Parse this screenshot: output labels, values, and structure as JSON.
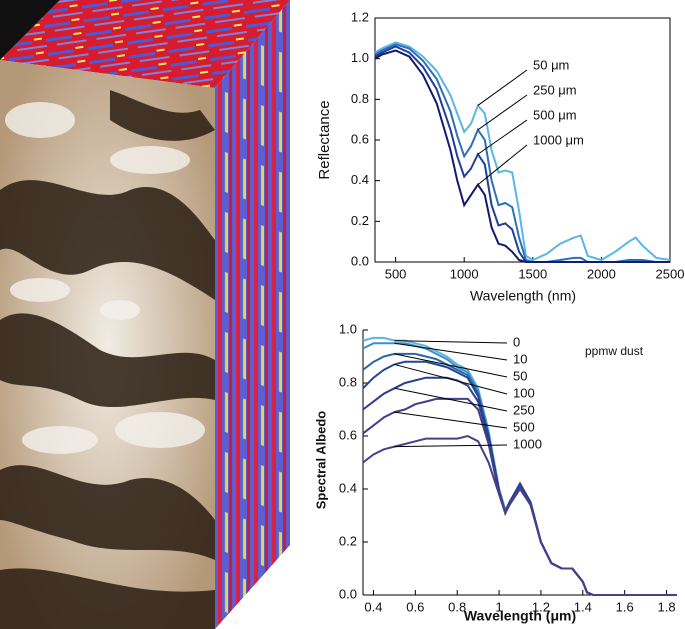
{
  "chart_data": [
    {
      "type": "line",
      "xlabel": "Wavelength (nm)",
      "ylabel": "Reflectance",
      "x": [
        350,
        400,
        500,
        600,
        700,
        800,
        900,
        950,
        1000,
        1050,
        1100,
        1150,
        1200,
        1250,
        1300,
        1350,
        1400,
        1450,
        1500,
        1600,
        1700,
        1800,
        1850,
        1900,
        2000,
        2100,
        2200,
        2250,
        2300,
        2400,
        2500
      ],
      "xlim": [
        350,
        2500
      ],
      "xticks": [
        500,
        1000,
        1500,
        2000,
        2500
      ],
      "ylim": [
        0,
        1.2
      ],
      "yticks": [
        {
          "value": 0,
          "label": "0.0"
        },
        0.2,
        0.4,
        0.6,
        0.8,
        {
          "value": 1,
          "label": "1.0"
        },
        1.2
      ],
      "series": [
        {
          "name": "50 μm",
          "color": "#58b7e3",
          "values": [
            1.03,
            1.05,
            1.08,
            1.06,
            1.01,
            0.94,
            0.82,
            0.73,
            0.64,
            0.68,
            0.77,
            0.73,
            0.55,
            0.44,
            0.45,
            0.44,
            0.25,
            0.03,
            0.01,
            0.04,
            0.09,
            0.12,
            0.13,
            0.03,
            0.01,
            0.05,
            0.1,
            0.12,
            0.08,
            0.02,
            0.01
          ]
        },
        {
          "name": "250 μm",
          "color": "#2e6fb8",
          "values": [
            1.02,
            1.04,
            1.07,
            1.05,
            0.99,
            0.9,
            0.74,
            0.62,
            0.52,
            0.57,
            0.65,
            0.6,
            0.4,
            0.28,
            0.29,
            0.27,
            0.12,
            0.01,
            0,
            0,
            0.01,
            0.02,
            0.02,
            0,
            0,
            0,
            0.01,
            0.01,
            0.01,
            0,
            0
          ]
        },
        {
          "name": "500 μm",
          "color": "#1f3f9a",
          "values": [
            1.01,
            1.03,
            1.06,
            1.03,
            0.96,
            0.85,
            0.65,
            0.52,
            0.42,
            0.46,
            0.53,
            0.48,
            0.28,
            0.18,
            0.19,
            0.16,
            0.05,
            0,
            0,
            0,
            0,
            0,
            0,
            0,
            0,
            0,
            0,
            0,
            0,
            0,
            0
          ]
        },
        {
          "name": "1000 μm",
          "color": "#141a70",
          "values": [
            1.0,
            1.02,
            1.04,
            1.01,
            0.92,
            0.78,
            0.55,
            0.4,
            0.28,
            0.33,
            0.38,
            0.33,
            0.17,
            0.09,
            0.08,
            0.05,
            0.01,
            0,
            0,
            0,
            0,
            0,
            0,
            0,
            0,
            0,
            0,
            0,
            0,
            0,
            0
          ]
        }
      ]
    },
    {
      "type": "line",
      "xlabel": "Wavelength (μm)",
      "ylabel": "Spectral Albedo",
      "legend_title": "ppmw dust",
      "x": [
        0.35,
        0.4,
        0.45,
        0.5,
        0.55,
        0.6,
        0.65,
        0.7,
        0.75,
        0.8,
        0.85,
        0.9,
        0.95,
        1.0,
        1.03,
        1.05,
        1.1,
        1.15,
        1.2,
        1.25,
        1.3,
        1.35,
        1.4,
        1.42,
        1.45,
        1.5,
        1.6,
        1.7,
        1.8,
        1.85
      ],
      "xlim": [
        0.35,
        1.85
      ],
      "xticks": [
        0.4,
        0.6,
        0.8,
        1,
        1.2,
        1.4,
        1.6,
        1.8
      ],
      "ylim": [
        0,
        1.0
      ],
      "yticks": [
        {
          "value": 0,
          "label": "0.0"
        },
        0.2,
        0.4,
        0.6,
        0.8,
        {
          "value": 1,
          "label": "1.0"
        }
      ],
      "series": [
        {
          "name": "0",
          "color": "#5fb4e0",
          "values": [
            0.96,
            0.97,
            0.97,
            0.96,
            0.96,
            0.95,
            0.94,
            0.92,
            0.9,
            0.87,
            0.85,
            0.78,
            0.62,
            0.4,
            0.32,
            0.35,
            0.42,
            0.35,
            0.2,
            0.12,
            0.1,
            0.1,
            0.05,
            0.01,
            0,
            0,
            0,
            0,
            0,
            0
          ]
        },
        {
          "name": "10",
          "color": "#3d8fcc",
          "values": [
            0.93,
            0.95,
            0.95,
            0.95,
            0.95,
            0.94,
            0.93,
            0.91,
            0.89,
            0.86,
            0.84,
            0.77,
            0.61,
            0.4,
            0.32,
            0.35,
            0.42,
            0.35,
            0.2,
            0.12,
            0.1,
            0.1,
            0.05,
            0.01,
            0,
            0,
            0,
            0,
            0,
            0
          ]
        },
        {
          "name": "50",
          "color": "#2a66b0",
          "values": [
            0.85,
            0.88,
            0.9,
            0.91,
            0.91,
            0.91,
            0.9,
            0.89,
            0.87,
            0.85,
            0.83,
            0.76,
            0.6,
            0.39,
            0.31,
            0.35,
            0.42,
            0.35,
            0.2,
            0.12,
            0.1,
            0.1,
            0.05,
            0.01,
            0,
            0,
            0,
            0,
            0,
            0
          ]
        },
        {
          "name": "100",
          "color": "#23478f",
          "values": [
            0.78,
            0.82,
            0.85,
            0.87,
            0.88,
            0.88,
            0.88,
            0.87,
            0.86,
            0.84,
            0.82,
            0.75,
            0.6,
            0.39,
            0.31,
            0.35,
            0.42,
            0.35,
            0.2,
            0.12,
            0.1,
            0.1,
            0.05,
            0.01,
            0,
            0,
            0,
            0,
            0,
            0
          ]
        },
        {
          "name": "250",
          "color": "#2c3d8c",
          "values": [
            0.7,
            0.73,
            0.76,
            0.78,
            0.8,
            0.81,
            0.82,
            0.82,
            0.82,
            0.81,
            0.79,
            0.73,
            0.59,
            0.39,
            0.31,
            0.35,
            0.41,
            0.35,
            0.2,
            0.12,
            0.1,
            0.1,
            0.05,
            0.01,
            0,
            0,
            0,
            0,
            0,
            0
          ]
        },
        {
          "name": "500",
          "color": "#3d3f8a",
          "values": [
            0.61,
            0.64,
            0.67,
            0.69,
            0.7,
            0.72,
            0.73,
            0.74,
            0.74,
            0.74,
            0.74,
            0.7,
            0.57,
            0.38,
            0.31,
            0.34,
            0.41,
            0.34,
            0.2,
            0.12,
            0.1,
            0.1,
            0.05,
            0.01,
            0,
            0,
            0,
            0,
            0,
            0
          ]
        },
        {
          "name": "1000",
          "color": "#4a3f88",
          "values": [
            0.5,
            0.53,
            0.55,
            0.56,
            0.57,
            0.58,
            0.59,
            0.59,
            0.59,
            0.59,
            0.6,
            0.58,
            0.5,
            0.38,
            0.31,
            0.34,
            0.4,
            0.34,
            0.2,
            0.12,
            0.1,
            0.1,
            0.05,
            0.01,
            0,
            0,
            0,
            0,
            0,
            0
          ]
        }
      ]
    }
  ]
}
